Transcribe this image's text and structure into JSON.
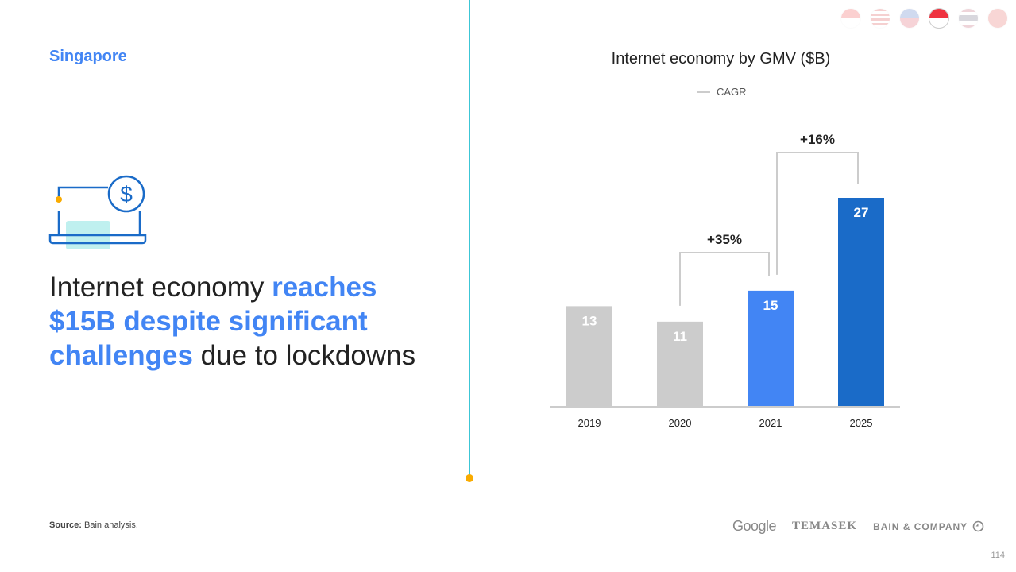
{
  "region": "Singapore",
  "headline": {
    "part1": "Internet economy ",
    "highlight": "reaches $15B despite significant challenges",
    "part2": " due to lockdowns"
  },
  "source": {
    "label": "Source:",
    "text": " Bain analysis."
  },
  "flags": [
    {
      "country": "Indonesia",
      "active": false
    },
    {
      "country": "Malaysia",
      "active": false
    },
    {
      "country": "Philippines",
      "active": false
    },
    {
      "country": "Singapore",
      "active": true
    },
    {
      "country": "Thailand",
      "active": false
    },
    {
      "country": "Vietnam",
      "active": false
    }
  ],
  "logos": {
    "google": "Google",
    "temasek": "TEMASEK",
    "bain": "BAIN & COMPANY"
  },
  "page_number": "114",
  "icon": "laptop-dollar-icon",
  "chart_data": {
    "type": "bar",
    "title": "Internet economy by GMV ($B)",
    "legend": [
      {
        "name": "CAGR",
        "placement": "top"
      }
    ],
    "categories": [
      "2019",
      "2020",
      "2021",
      "2025"
    ],
    "values": [
      13,
      11,
      15,
      27
    ],
    "labels": [
      "13",
      "11",
      "15",
      "27"
    ],
    "colors": [
      "#cccccc",
      "#cccccc",
      "#4285f4",
      "#1a6bc8"
    ],
    "annotations": [
      {
        "from": "2020",
        "to": "2021",
        "text": "+35%"
      },
      {
        "from": "2021",
        "to": "2025",
        "text": "+16%"
      }
    ]
  }
}
